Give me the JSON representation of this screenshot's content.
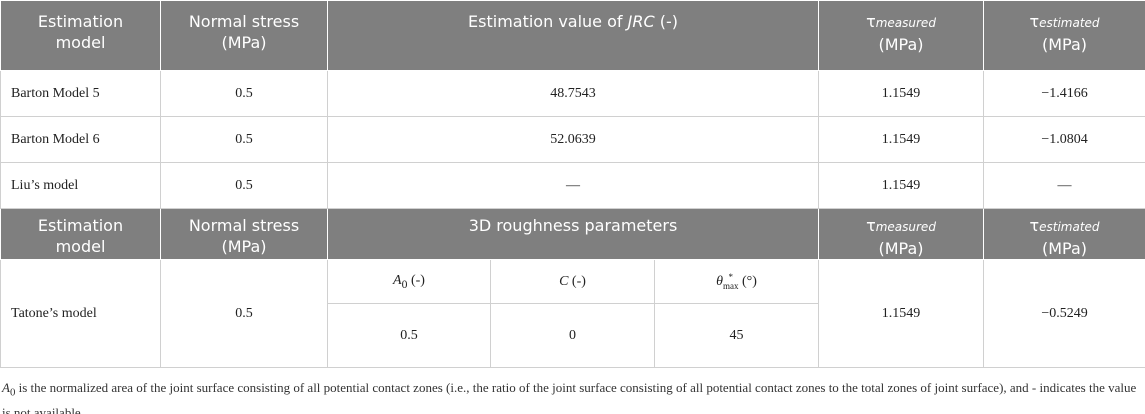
{
  "table": {
    "header1": {
      "model": [
        "Estimation",
        "model"
      ],
      "stress": [
        "Normal stress",
        "(MPa)"
      ],
      "jrc": [
        "Estimation value of ",
        "JRC",
        " (-)"
      ],
      "measured": [
        "τ",
        "measured",
        "(MPa)"
      ],
      "estimated": [
        "τ",
        "estimated",
        "(MPa)"
      ]
    },
    "rows": [
      [
        "Barton Model 5",
        "0.5",
        "48.7543",
        "1.1549",
        "−1.4166"
      ],
      [
        "Barton Model 6",
        "0.5",
        "52.0639",
        "1.1549",
        "−1.0804"
      ],
      [
        "Liu’s model",
        "0.5",
        "—",
        "1.1549",
        "—"
      ]
    ],
    "header2": {
      "model": [
        "Estimation",
        "model"
      ],
      "stress": [
        "Normal stress",
        "(MPa)"
      ],
      "roughness": "3D roughness parameters",
      "measured": [
        "τ",
        "measured",
        "(MPa)"
      ],
      "estimated": [
        "τ",
        "estimated",
        "(MPa)"
      ]
    },
    "tatone": {
      "model": "Tatone’s model",
      "stress": "0.5",
      "params": [
        [
          "A",
          "0",
          " (-)"
        ],
        [
          "C",
          " (-)"
        ],
        [
          "θ",
          "*",
          "max",
          " (°)"
        ]
      ],
      "values": [
        "0.5",
        "0",
        "45"
      ],
      "measured": "1.1549",
      "estimated": "−0.5249"
    },
    "footnote": [
      "A",
      "0",
      " is the normalized area of the joint surface consisting of all potential contact zones (i.e., the ratio of the joint surface consisting of all potential contact zones to the total zones of joint surface), and - indicates the value is not available."
    ]
  }
}
